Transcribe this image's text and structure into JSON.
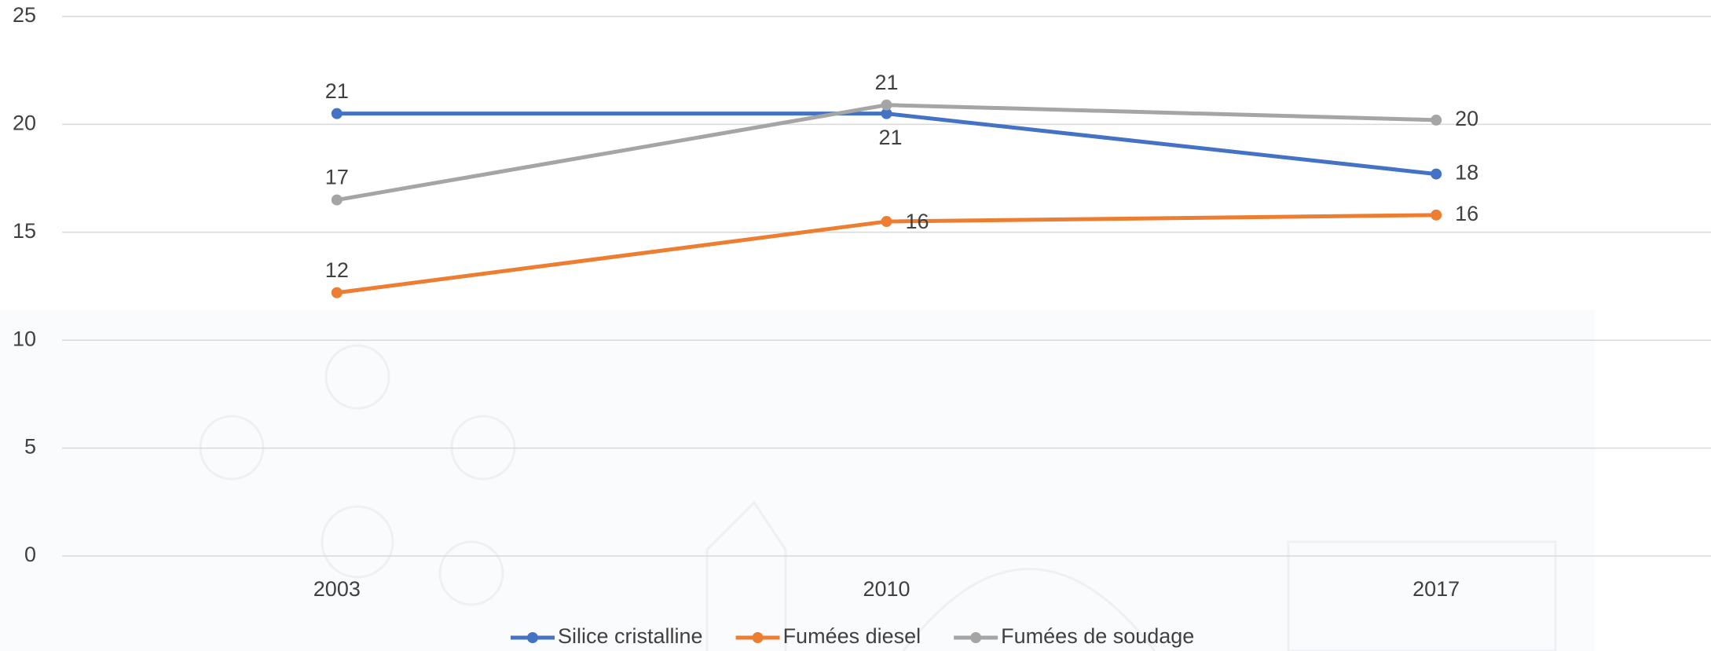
{
  "chart_data": {
    "type": "line",
    "categories": [
      "2003",
      "2010",
      "2017"
    ],
    "series": [
      {
        "name": "Silice cristalline",
        "color": "#4472c4",
        "values": [
          20.5,
          20.5,
          17.7
        ],
        "value_labels": [
          "21",
          "21",
          "18"
        ]
      },
      {
        "name": "Fumées diesel",
        "color": "#ed7d31",
        "values": [
          12.2,
          15.5,
          15.8
        ],
        "value_labels": [
          "12",
          "16",
          "16"
        ]
      },
      {
        "name": "Fumées de soudage",
        "color": "#a5a5a5",
        "values": [
          16.5,
          20.9,
          20.2
        ],
        "value_labels": [
          "17",
          "21",
          "20"
        ]
      }
    ],
    "ylim": [
      0,
      25
    ],
    "yticks": [
      0,
      5,
      10,
      15,
      20,
      25
    ],
    "grid": true,
    "legend": "bottom"
  }
}
